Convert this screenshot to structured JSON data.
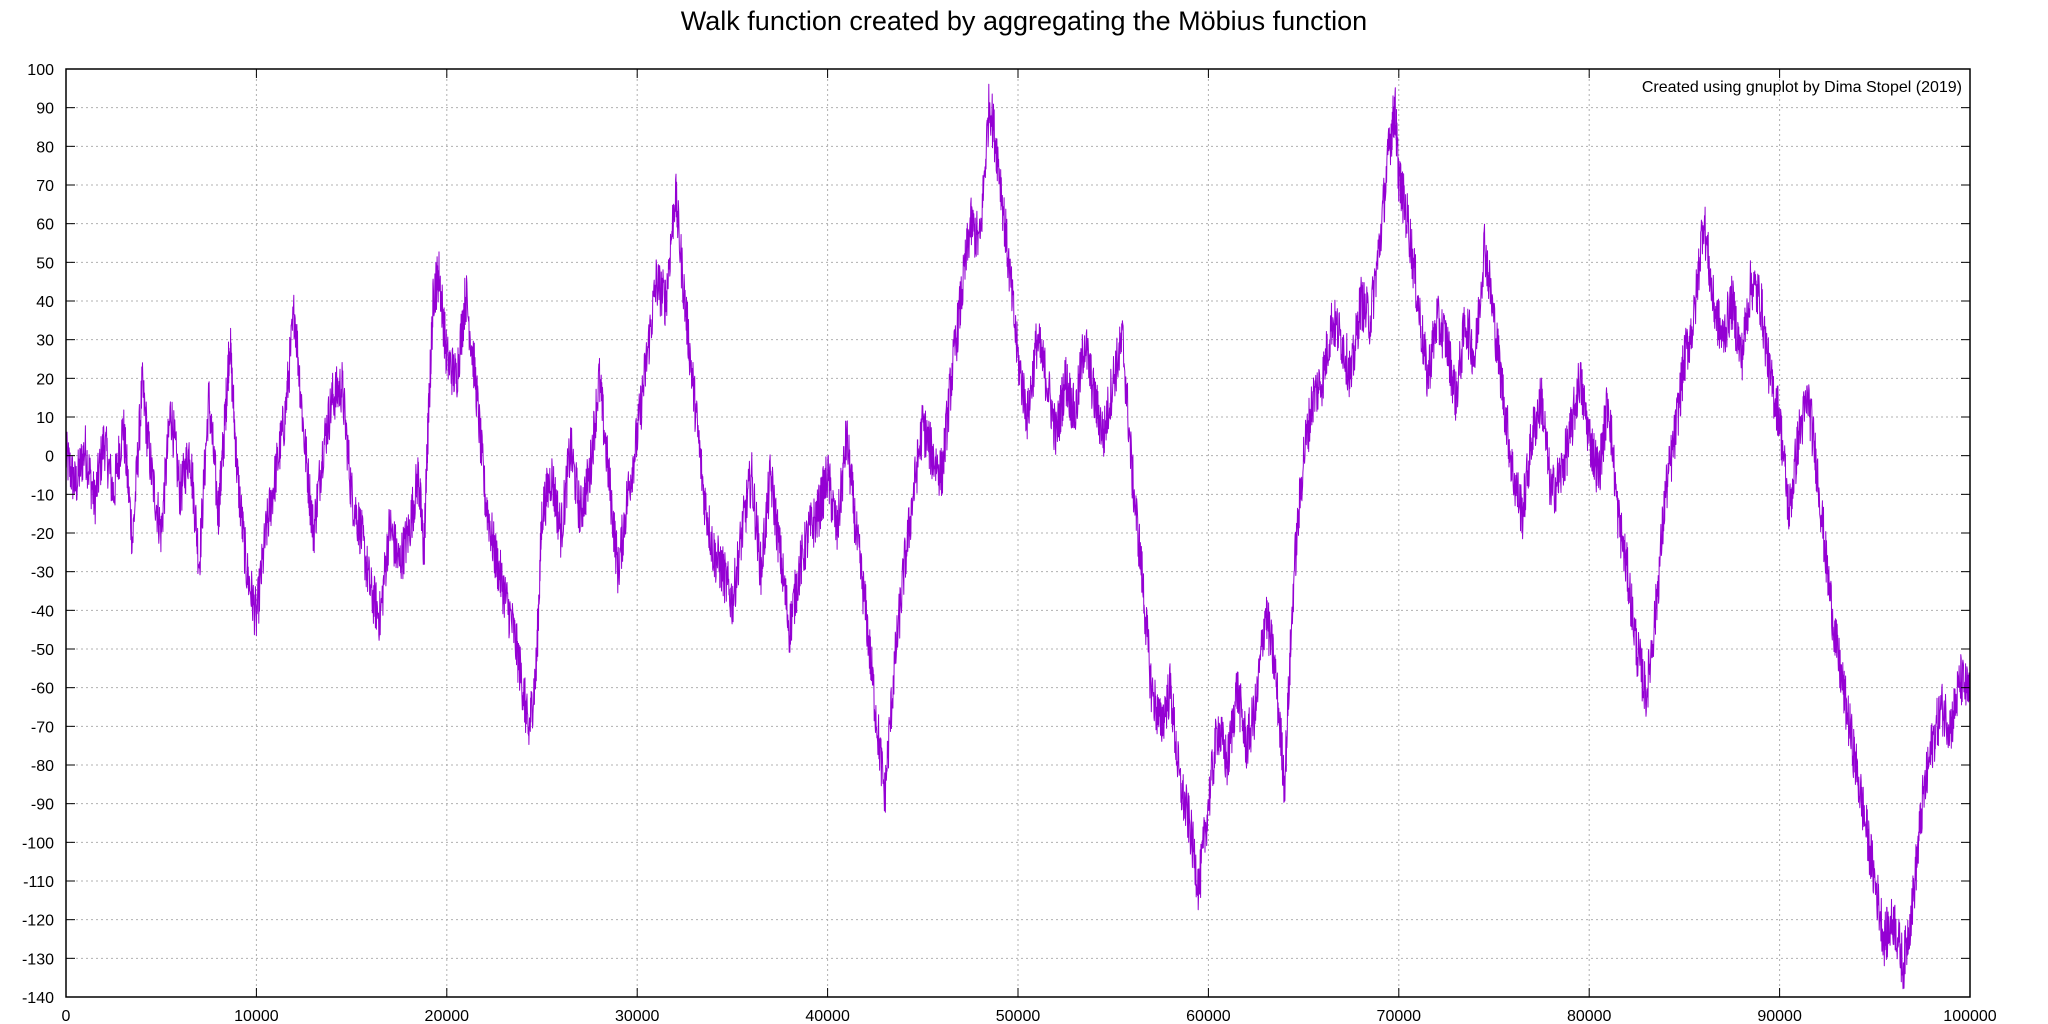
{
  "chart_data": {
    "type": "line",
    "title": "Walk function created by aggregating the Möbius function",
    "xlabel": "",
    "ylabel": "",
    "xlim": [
      0,
      100000
    ],
    "ylim": [
      -140,
      100
    ],
    "x_ticks": [
      0,
      10000,
      20000,
      30000,
      40000,
      50000,
      60000,
      70000,
      80000,
      90000,
      100000
    ],
    "y_ticks": [
      100,
      90,
      80,
      70,
      60,
      50,
      40,
      30,
      20,
      10,
      0,
      -10,
      -20,
      -30,
      -40,
      -50,
      -60,
      -70,
      -80,
      -90,
      -100,
      -110,
      -120,
      -130,
      -140
    ],
    "grid": true,
    "legend": "none",
    "annotation": "Created using gnuplot by Dima Stopel (2019)",
    "series": [
      {
        "color": "#9400D3",
        "points": [
          [
            0,
            0
          ],
          [
            500,
            -8
          ],
          [
            1000,
            2
          ],
          [
            1500,
            -12
          ],
          [
            2000,
            4
          ],
          [
            2500,
            -10
          ],
          [
            3000,
            8
          ],
          [
            3500,
            -22
          ],
          [
            4000,
            18
          ],
          [
            4500,
            -5
          ],
          [
            5000,
            -20
          ],
          [
            5500,
            12
          ],
          [
            6000,
            -10
          ],
          [
            6500,
            2
          ],
          [
            7000,
            -28
          ],
          [
            7500,
            15
          ],
          [
            8000,
            -15
          ],
          [
            8300,
            5
          ],
          [
            8600,
            30
          ],
          [
            9000,
            -5
          ],
          [
            9500,
            -30
          ],
          [
            10000,
            -42
          ],
          [
            10500,
            -20
          ],
          [
            11000,
            -5
          ],
          [
            11500,
            10
          ],
          [
            12000,
            38
          ],
          [
            12500,
            5
          ],
          [
            13000,
            -20
          ],
          [
            13500,
            2
          ],
          [
            14000,
            15
          ],
          [
            14500,
            18
          ],
          [
            15000,
            -10
          ],
          [
            15500,
            -20
          ],
          [
            16000,
            -35
          ],
          [
            16500,
            -42
          ],
          [
            17000,
            -18
          ],
          [
            17500,
            -28
          ],
          [
            18000,
            -20
          ],
          [
            18500,
            -5
          ],
          [
            18800,
            -25
          ],
          [
            19000,
            5
          ],
          [
            19300,
            42
          ],
          [
            19600,
            47
          ],
          [
            20000,
            25
          ],
          [
            20500,
            20
          ],
          [
            21000,
            42
          ],
          [
            21500,
            20
          ],
          [
            22000,
            -10
          ],
          [
            22500,
            -25
          ],
          [
            23000,
            -35
          ],
          [
            23500,
            -45
          ],
          [
            24000,
            -60
          ],
          [
            24300,
            -72
          ],
          [
            24700,
            -55
          ],
          [
            25000,
            -15
          ],
          [
            25500,
            -5
          ],
          [
            26000,
            -20
          ],
          [
            26500,
            2
          ],
          [
            27000,
            -15
          ],
          [
            27500,
            -5
          ],
          [
            28000,
            20
          ],
          [
            28500,
            -5
          ],
          [
            29000,
            -30
          ],
          [
            29500,
            -10
          ],
          [
            30000,
            5
          ],
          [
            30500,
            25
          ],
          [
            31000,
            45
          ],
          [
            31500,
            40
          ],
          [
            32000,
            68
          ],
          [
            32500,
            40
          ],
          [
            33000,
            15
          ],
          [
            33500,
            -10
          ],
          [
            34000,
            -25
          ],
          [
            34500,
            -30
          ],
          [
            35000,
            -38
          ],
          [
            35500,
            -20
          ],
          [
            36000,
            -5
          ],
          [
            36500,
            -30
          ],
          [
            37000,
            -5
          ],
          [
            37500,
            -25
          ],
          [
            38000,
            -45
          ],
          [
            38500,
            -30
          ],
          [
            39000,
            -20
          ],
          [
            39500,
            -15
          ],
          [
            40000,
            -5
          ],
          [
            40500,
            -20
          ],
          [
            41000,
            5
          ],
          [
            41500,
            -20
          ],
          [
            42000,
            -40
          ],
          [
            42500,
            -65
          ],
          [
            43000,
            -88
          ],
          [
            43500,
            -55
          ],
          [
            44000,
            -30
          ],
          [
            44500,
            -10
          ],
          [
            45000,
            8
          ],
          [
            45500,
            0
          ],
          [
            46000,
            -5
          ],
          [
            46500,
            20
          ],
          [
            47000,
            40
          ],
          [
            47500,
            60
          ],
          [
            48000,
            55
          ],
          [
            48500,
            92
          ],
          [
            49000,
            75
          ],
          [
            49500,
            50
          ],
          [
            50000,
            25
          ],
          [
            50500,
            10
          ],
          [
            51000,
            30
          ],
          [
            51500,
            20
          ],
          [
            52000,
            5
          ],
          [
            52500,
            20
          ],
          [
            53000,
            10
          ],
          [
            53500,
            30
          ],
          [
            54000,
            15
          ],
          [
            54500,
            5
          ],
          [
            55000,
            20
          ],
          [
            55500,
            30
          ],
          [
            56000,
            -5
          ],
          [
            56500,
            -30
          ],
          [
            57000,
            -60
          ],
          [
            57500,
            -70
          ],
          [
            58000,
            -60
          ],
          [
            58500,
            -85
          ],
          [
            59000,
            -95
          ],
          [
            59500,
            -112
          ],
          [
            60000,
            -90
          ],
          [
            60500,
            -70
          ],
          [
            61000,
            -80
          ],
          [
            61500,
            -60
          ],
          [
            62000,
            -75
          ],
          [
            62500,
            -65
          ],
          [
            63000,
            -40
          ],
          [
            63500,
            -55
          ],
          [
            64000,
            -85
          ],
          [
            64500,
            -30
          ],
          [
            65000,
            0
          ],
          [
            65500,
            15
          ],
          [
            66000,
            20
          ],
          [
            66500,
            35
          ],
          [
            67000,
            30
          ],
          [
            67500,
            20
          ],
          [
            68000,
            40
          ],
          [
            68500,
            35
          ],
          [
            69000,
            55
          ],
          [
            69500,
            80
          ],
          [
            69800,
            90
          ],
          [
            70000,
            72
          ],
          [
            70500,
            60
          ],
          [
            71000,
            40
          ],
          [
            71500,
            20
          ],
          [
            72000,
            35
          ],
          [
            72500,
            30
          ],
          [
            73000,
            15
          ],
          [
            73500,
            35
          ],
          [
            74000,
            25
          ],
          [
            74500,
            55
          ],
          [
            75000,
            35
          ],
          [
            75500,
            15
          ],
          [
            76000,
            -5
          ],
          [
            76500,
            -15
          ],
          [
            77000,
            5
          ],
          [
            77500,
            15
          ],
          [
            78000,
            -10
          ],
          [
            78500,
            -5
          ],
          [
            79000,
            5
          ],
          [
            79500,
            20
          ],
          [
            80000,
            5
          ],
          [
            80500,
            -5
          ],
          [
            81000,
            15
          ],
          [
            81500,
            -15
          ],
          [
            82000,
            -30
          ],
          [
            82500,
            -50
          ],
          [
            83000,
            -62
          ],
          [
            83500,
            -40
          ],
          [
            84000,
            -10
          ],
          [
            84500,
            5
          ],
          [
            85000,
            25
          ],
          [
            85500,
            35
          ],
          [
            86000,
            62
          ],
          [
            86500,
            40
          ],
          [
            87000,
            30
          ],
          [
            87500,
            40
          ],
          [
            88000,
            25
          ],
          [
            88500,
            45
          ],
          [
            89000,
            40
          ],
          [
            89500,
            20
          ],
          [
            90000,
            10
          ],
          [
            90500,
            -15
          ],
          [
            91000,
            5
          ],
          [
            91500,
            15
          ],
          [
            92000,
            -5
          ],
          [
            92500,
            -30
          ],
          [
            93000,
            -50
          ],
          [
            93500,
            -65
          ],
          [
            94000,
            -80
          ],
          [
            94500,
            -95
          ],
          [
            95000,
            -110
          ],
          [
            95500,
            -125
          ],
          [
            96000,
            -120
          ],
          [
            96500,
            -132
          ],
          [
            97000,
            -115
          ],
          [
            97500,
            -90
          ],
          [
            98000,
            -75
          ],
          [
            98500,
            -65
          ],
          [
            99000,
            -70
          ],
          [
            99500,
            -58
          ],
          [
            100000,
            -62
          ]
        ]
      }
    ]
  }
}
